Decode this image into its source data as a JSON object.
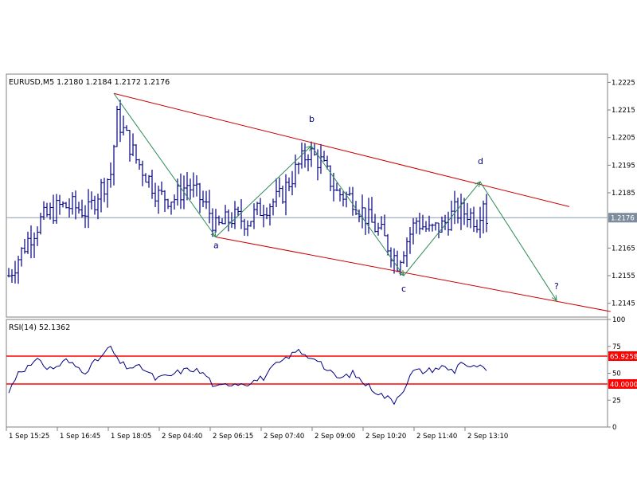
{
  "chart_data": [
    {
      "type": "candlestick",
      "symbol_header": "EURUSD,M5  1.2180 1.2184 1.2172 1.2176",
      "last_price": {
        "value": 1.2176,
        "label": "1.2176"
      },
      "ylim": [
        1.214,
        1.2228
      ],
      "y_ticks": [
        "1.2225",
        "1.2215",
        "1.2205",
        "1.2195",
        "1.2185",
        "1.2165",
        "1.2155",
        "1.2145"
      ],
      "y_tick_values": [
        1.2225,
        1.2215,
        1.2205,
        1.2195,
        1.2185,
        1.2165,
        1.2155,
        1.2145
      ],
      "x_ticks": [
        "1 Sep 15:25",
        "1 Sep 16:45",
        "1 Sep 18:05",
        "2 Sep 04:40",
        "2 Sep 06:15",
        "2 Sep 07:40",
        "2 Sep 09:00",
        "2 Sep 10:20",
        "2 Sep 11:40",
        "2 Sep 13:10"
      ],
      "x_tick_bars": [
        0,
        16,
        32,
        48,
        64,
        80,
        96,
        112,
        128,
        144
      ],
      "close_path": [
        [
          0,
          1.2155
        ],
        [
          6,
          1.2168
        ],
        [
          10,
          1.2175
        ],
        [
          16,
          1.218
        ],
        [
          20,
          1.218
        ],
        [
          25,
          1.2178
        ],
        [
          28,
          1.2185
        ],
        [
          32,
          1.2192
        ],
        [
          34,
          1.2212
        ],
        [
          37,
          1.2205
        ],
        [
          40,
          1.2197
        ],
        [
          44,
          1.219
        ],
        [
          47,
          1.2184
        ],
        [
          52,
          1.2183
        ],
        [
          56,
          1.2188
        ],
        [
          60,
          1.2183
        ],
        [
          63,
          1.2178
        ],
        [
          65,
          1.2172
        ],
        [
          70,
          1.2176
        ],
        [
          75,
          1.2175
        ],
        [
          80,
          1.218
        ],
        [
          85,
          1.2183
        ],
        [
          90,
          1.2193
        ],
        [
          94,
          1.22
        ],
        [
          98,
          1.2196
        ],
        [
          103,
          1.2185
        ],
        [
          108,
          1.2183
        ],
        [
          113,
          1.2175
        ],
        [
          117,
          1.217
        ],
        [
          122,
          1.216
        ],
        [
          125,
          1.2168
        ],
        [
          128,
          1.2175
        ],
        [
          132,
          1.2171
        ],
        [
          136,
          1.2173
        ],
        [
          140,
          1.2178
        ],
        [
          144,
          1.2178
        ],
        [
          147,
          1.2175
        ],
        [
          149,
          1.2183
        ],
        [
          150,
          1.2176
        ]
      ],
      "channel": {
        "upper": [
          [
            33,
            1.2221
          ],
          [
            176,
            1.218
          ]
        ],
        "lower": [
          [
            65,
            1.2169
          ],
          [
            189,
            1.2142
          ]
        ]
      },
      "wave_points": [
        {
          "label": "",
          "bar": 33,
          "price": 1.2221
        },
        {
          "label": "a",
          "bar": 65,
          "price": 1.2169
        },
        {
          "label": "b",
          "bar": 95,
          "price": 1.2202
        },
        {
          "label": "c",
          "bar": 124,
          "price": 1.2155
        },
        {
          "label": "d",
          "bar": 148,
          "price": 1.2189
        },
        {
          "label": "?",
          "bar": 172,
          "price": 1.2146
        }
      ],
      "colors": {
        "channel": "#cc0000",
        "wave": "#2e8b57",
        "labels": "#000080",
        "bars": "#000080",
        "price_line": "#8a9aaa"
      }
    },
    {
      "type": "line",
      "header": "RSI(14)  52.1362",
      "ylim": [
        0,
        100
      ],
      "y_ticks": [
        "100",
        "75",
        "50",
        "25",
        "0"
      ],
      "y_tick_values": [
        100,
        75,
        50,
        25,
        0
      ],
      "levels": [
        {
          "value": 65.9258,
          "label": "65.9258"
        },
        {
          "value": 40.0,
          "label": "40.0000"
        }
      ],
      "series_path": [
        [
          0,
          32
        ],
        [
          3,
          52
        ],
        [
          7,
          57
        ],
        [
          10,
          63
        ],
        [
          12,
          54
        ],
        [
          15,
          56
        ],
        [
          18,
          62
        ],
        [
          20,
          58
        ],
        [
          24,
          52
        ],
        [
          27,
          60
        ],
        [
          30,
          68
        ],
        [
          32,
          75
        ],
        [
          34,
          62
        ],
        [
          37,
          56
        ],
        [
          42,
          55
        ],
        [
          46,
          45
        ],
        [
          50,
          47
        ],
        [
          54,
          52
        ],
        [
          58,
          54
        ],
        [
          62,
          48
        ],
        [
          65,
          36
        ],
        [
          70,
          41
        ],
        [
          75,
          41
        ],
        [
          80,
          46
        ],
        [
          84,
          58
        ],
        [
          88,
          64
        ],
        [
          90,
          72
        ],
        [
          93,
          66
        ],
        [
          97,
          64
        ],
        [
          100,
          52
        ],
        [
          104,
          45
        ],
        [
          108,
          50
        ],
        [
          112,
          40
        ],
        [
          117,
          30
        ],
        [
          121,
          24
        ],
        [
          124,
          36
        ],
        [
          127,
          52
        ],
        [
          131,
          52
        ],
        [
          136,
          56
        ],
        [
          140,
          52
        ],
        [
          142,
          62
        ],
        [
          145,
          54
        ],
        [
          147,
          57
        ],
        [
          150,
          52
        ]
      ],
      "colors": {
        "line": "#000080",
        "levels": "#ff0000"
      }
    }
  ]
}
